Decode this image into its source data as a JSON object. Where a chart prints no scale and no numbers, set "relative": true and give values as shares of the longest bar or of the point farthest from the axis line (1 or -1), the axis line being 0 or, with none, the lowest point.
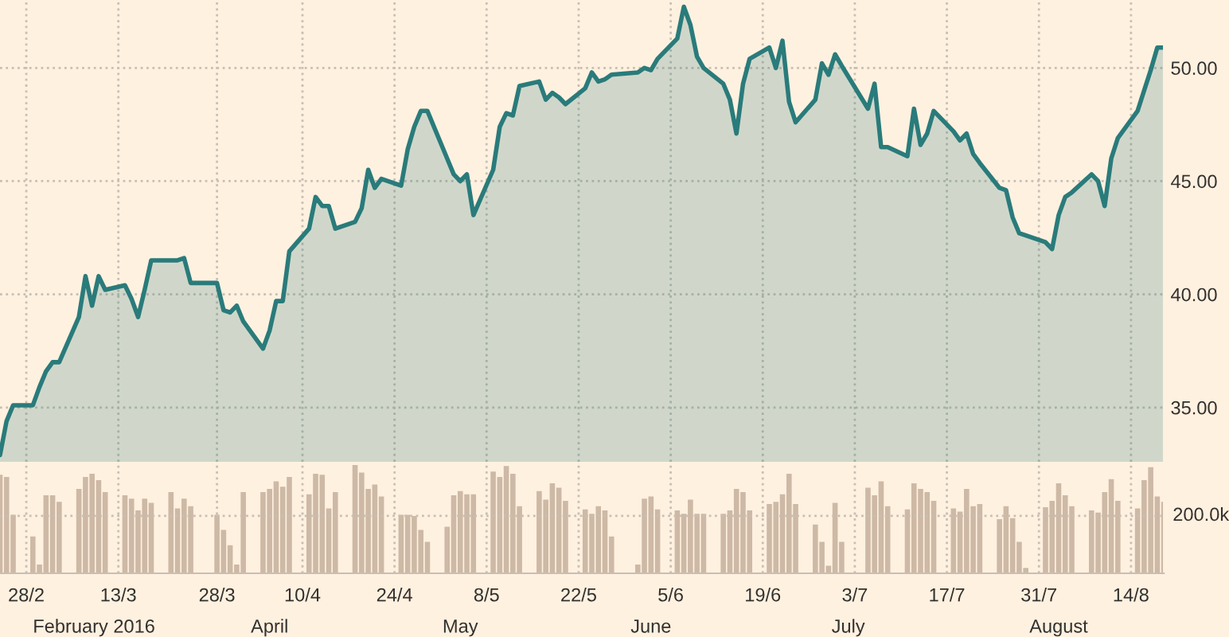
{
  "chart_data": [
    {
      "type": "area",
      "color": "#2a7b7b",
      "grid": true,
      "tick_labels": "y",
      "x": [
        "2016-02-24",
        "2016-02-25",
        "2016-02-26",
        "2016-02-29",
        "2016-03-01",
        "2016-03-02",
        "2016-03-03",
        "2016-03-04",
        "2016-03-07",
        "2016-03-08",
        "2016-03-09",
        "2016-03-10",
        "2016-03-11",
        "2016-03-14",
        "2016-03-15",
        "2016-03-16",
        "2016-03-17",
        "2016-03-18",
        "2016-03-21",
        "2016-03-22",
        "2016-03-23",
        "2016-03-24",
        "2016-03-28",
        "2016-03-29",
        "2016-03-30",
        "2016-03-31",
        "2016-04-01",
        "2016-04-04",
        "2016-04-05",
        "2016-04-06",
        "2016-04-07",
        "2016-04-08",
        "2016-04-11",
        "2016-04-12",
        "2016-04-13",
        "2016-04-14",
        "2016-04-15",
        "2016-04-18",
        "2016-04-19",
        "2016-04-20",
        "2016-04-21",
        "2016-04-22",
        "2016-04-25",
        "2016-04-26",
        "2016-04-27",
        "2016-04-28",
        "2016-04-29",
        "2016-05-02",
        "2016-05-03",
        "2016-05-04",
        "2016-05-05",
        "2016-05-06",
        "2016-05-09",
        "2016-05-10",
        "2016-05-11",
        "2016-05-12",
        "2016-05-13",
        "2016-05-16",
        "2016-05-17",
        "2016-05-18",
        "2016-05-19",
        "2016-05-20",
        "2016-05-23",
        "2016-05-24",
        "2016-05-25",
        "2016-05-26",
        "2016-05-27",
        "2016-05-31",
        "2016-06-01",
        "2016-06-02",
        "2016-06-03",
        "2016-06-06",
        "2016-06-07",
        "2016-06-08",
        "2016-06-09",
        "2016-06-10",
        "2016-06-13",
        "2016-06-14",
        "2016-06-15",
        "2016-06-16",
        "2016-06-17",
        "2016-06-20",
        "2016-06-21",
        "2016-06-22",
        "2016-06-23",
        "2016-06-24",
        "2016-06-27",
        "2016-06-28",
        "2016-06-29",
        "2016-06-30",
        "2016-07-01",
        "2016-07-05",
        "2016-07-06",
        "2016-07-07",
        "2016-07-08",
        "2016-07-11",
        "2016-07-12",
        "2016-07-13",
        "2016-07-14",
        "2016-07-15",
        "2016-07-18",
        "2016-07-19",
        "2016-07-20",
        "2016-07-21",
        "2016-07-22",
        "2016-07-25",
        "2016-07-26",
        "2016-07-27",
        "2016-07-28",
        "2016-07-29",
        "2016-08-01",
        "2016-08-02",
        "2016-08-03",
        "2016-08-04",
        "2016-08-05",
        "2016-08-08",
        "2016-08-09",
        "2016-08-10",
        "2016-08-11",
        "2016-08-12",
        "2016-08-15",
        "2016-08-16",
        "2016-08-17",
        "2016-08-18",
        "2016-08-19"
      ],
      "values": [
        32.9,
        34.4,
        35.1,
        35.1,
        35.9,
        36.6,
        37.0,
        37.0,
        39.0,
        40.8,
        39.5,
        40.8,
        40.2,
        40.4,
        39.8,
        39.0,
        40.2,
        41.5,
        41.5,
        41.5,
        41.6,
        40.5,
        40.5,
        39.3,
        39.2,
        39.5,
        38.8,
        37.6,
        38.4,
        39.7,
        39.7,
        41.9,
        42.9,
        44.3,
        43.9,
        43.9,
        42.9,
        43.2,
        43.8,
        45.5,
        44.7,
        45.1,
        44.8,
        46.4,
        47.4,
        48.1,
        48.1,
        46.0,
        45.3,
        45.0,
        45.3,
        43.5,
        45.5,
        47.4,
        48.0,
        47.9,
        49.2,
        49.4,
        48.6,
        48.9,
        48.7,
        48.4,
        49.1,
        49.8,
        49.4,
        49.5,
        49.7,
        49.8,
        50.0,
        49.9,
        50.4,
        51.3,
        52.7,
        51.9,
        50.5,
        50.0,
        49.3,
        48.6,
        47.1,
        49.3,
        50.4,
        50.9,
        50.0,
        51.2,
        48.5,
        47.6,
        48.6,
        50.2,
        49.7,
        50.6,
        50.1,
        48.2,
        49.3,
        46.5,
        46.5,
        46.1,
        48.2,
        46.6,
        47.1,
        48.1,
        47.2,
        46.8,
        47.1,
        46.2,
        45.8,
        44.7,
        44.6,
        43.4,
        42.7,
        42.6,
        42.3,
        42.0,
        43.5,
        44.3,
        44.5,
        45.3,
        45.0,
        43.9,
        46.0,
        46.9,
        48.1,
        49.0,
        49.9,
        50.9,
        50.9
      ],
      "xlim": [
        "2016-02-24",
        "2016-08-19"
      ],
      "xticks": [
        {
          "value": "2016-02-28",
          "label": null
        },
        {
          "value": "2016-03-13",
          "label": null
        },
        {
          "value": "2016-03-28",
          "label": null
        },
        {
          "value": "2016-04-10",
          "label": null
        },
        {
          "value": "2016-04-24",
          "label": null
        },
        {
          "value": "2016-05-08",
          "label": null
        },
        {
          "value": "2016-05-22",
          "label": null
        },
        {
          "value": "2016-06-05",
          "label": null
        },
        {
          "value": "2016-06-19",
          "label": null
        },
        {
          "value": "2016-07-03",
          "label": null
        },
        {
          "value": "2016-07-17",
          "label": null
        },
        {
          "value": "2016-07-31",
          "label": null
        },
        {
          "value": "2016-08-14",
          "label": null
        }
      ],
      "ylim": [
        32.6,
        53.0
      ],
      "yticks": [
        {
          "value": 35,
          "label": "35.00"
        },
        {
          "value": 40,
          "label": "40.00"
        },
        {
          "value": 45,
          "label": "45.00"
        },
        {
          "value": 50,
          "label": "50.00"
        }
      ]
    },
    {
      "type": "bar",
      "relative": true,
      "color": "#cdb9a5",
      "grid": "x",
      "x": [
        "2016-02-24",
        "2016-02-25",
        "2016-02-26",
        "2016-02-29",
        "2016-03-01",
        "2016-03-02",
        "2016-03-03",
        "2016-03-04",
        "2016-03-07",
        "2016-03-08",
        "2016-03-09",
        "2016-03-10",
        "2016-03-11",
        "2016-03-14",
        "2016-03-15",
        "2016-03-16",
        "2016-03-17",
        "2016-03-18",
        "2016-03-21",
        "2016-03-22",
        "2016-03-23",
        "2016-03-24",
        "2016-03-28",
        "2016-03-29",
        "2016-03-30",
        "2016-03-31",
        "2016-04-01",
        "2016-04-04",
        "2016-04-05",
        "2016-04-06",
        "2016-04-07",
        "2016-04-08",
        "2016-04-11",
        "2016-04-12",
        "2016-04-13",
        "2016-04-14",
        "2016-04-15",
        "2016-04-18",
        "2016-04-19",
        "2016-04-20",
        "2016-04-21",
        "2016-04-22",
        "2016-04-25",
        "2016-04-26",
        "2016-04-27",
        "2016-04-28",
        "2016-04-29",
        "2016-05-02",
        "2016-05-03",
        "2016-05-04",
        "2016-05-05",
        "2016-05-06",
        "2016-05-09",
        "2016-05-10",
        "2016-05-11",
        "2016-05-12",
        "2016-05-13",
        "2016-05-16",
        "2016-05-17",
        "2016-05-18",
        "2016-05-19",
        "2016-05-20",
        "2016-05-23",
        "2016-05-24",
        "2016-05-25",
        "2016-05-26",
        "2016-05-27",
        "2016-05-31",
        "2016-06-01",
        "2016-06-02",
        "2016-06-03",
        "2016-06-06",
        "2016-06-07",
        "2016-06-08",
        "2016-06-09",
        "2016-06-10",
        "2016-06-13",
        "2016-06-14",
        "2016-06-15",
        "2016-06-16",
        "2016-06-17",
        "2016-06-20",
        "2016-06-21",
        "2016-06-22",
        "2016-06-23",
        "2016-06-24",
        "2016-06-27",
        "2016-06-28",
        "2016-06-29",
        "2016-06-30",
        "2016-07-01",
        "2016-07-05",
        "2016-07-06",
        "2016-07-07",
        "2016-07-08",
        "2016-07-11",
        "2016-07-12",
        "2016-07-13",
        "2016-07-14",
        "2016-07-15",
        "2016-07-18",
        "2016-07-19",
        "2016-07-20",
        "2016-07-21",
        "2016-07-22",
        "2016-07-25",
        "2016-07-26",
        "2016-07-27",
        "2016-07-28",
        "2016-07-29",
        "2016-08-01",
        "2016-08-02",
        "2016-08-03",
        "2016-08-04",
        "2016-08-05",
        "2016-08-08",
        "2016-08-09",
        "2016-08-10",
        "2016-08-11",
        "2016-08-12",
        "2016-08-15",
        "2016-08-16",
        "2016-08-17",
        "2016-08-18",
        "2016-08-19"
      ],
      "values": [
        0.91,
        0.89,
        0.54,
        0.34,
        0.08,
        0.72,
        0.72,
        0.66,
        0.78,
        0.89,
        0.92,
        0.86,
        0.75,
        0.72,
        0.69,
        0.58,
        0.69,
        0.65,
        0.75,
        0.6,
        0.69,
        0.62,
        0.54,
        0.4,
        0.26,
        0.08,
        0.75,
        0.75,
        0.78,
        0.85,
        0.8,
        0.89,
        0.73,
        0.92,
        0.91,
        0.6,
        0.75,
        1,
        0.93,
        0.78,
        0.82,
        0.71,
        0.54,
        0.54,
        0.53,
        0.4,
        0.29,
        0.43,
        0.72,
        0.76,
        0.73,
        0.73,
        0.94,
        0.89,
        0.99,
        0.92,
        0.62,
        0.76,
        0.68,
        0.83,
        0.79,
        0.67,
        0.59,
        0.55,
        0.62,
        0.58,
        0.34,
        0.08,
        0.69,
        0.71,
        0.59,
        0.58,
        0.55,
        0.68,
        0.55,
        0.55,
        0.55,
        0.58,
        0.78,
        0.75,
        0.58,
        0.64,
        0.66,
        0.73,
        0.92,
        0.64,
        0.45,
        0.29,
        0.07,
        0.65,
        0.29,
        0.79,
        0.72,
        0.85,
        0.62,
        0.59,
        0.83,
        0.78,
        0.75,
        0.67,
        0.6,
        0.57,
        0.78,
        0.62,
        0.64,
        0.5,
        0.62,
        0.51,
        0.29,
        0.05,
        0.61,
        0.67,
        0.83,
        0.72,
        0.62,
        0.58,
        0.56,
        0.75,
        0.87,
        0.67,
        0.6,
        0.86,
        0.98,
        0.71,
        0.66
      ],
      "xlim": [
        "2016-02-24",
        "2016-08-19"
      ],
      "xticks": [
        {
          "value": "2016-02-28",
          "label": "28/2"
        },
        {
          "value": "2016-03-13",
          "label": "13/3"
        },
        {
          "value": "2016-03-28",
          "label": "28/3"
        },
        {
          "value": "2016-04-10",
          "label": "10/4"
        },
        {
          "value": "2016-04-24",
          "label": "24/4"
        },
        {
          "value": "2016-05-08",
          "label": "8/5"
        },
        {
          "value": "2016-05-22",
          "label": "22/5"
        },
        {
          "value": "2016-06-05",
          "label": "5/6"
        },
        {
          "value": "2016-06-19",
          "label": "19/6"
        },
        {
          "value": "2016-07-03",
          "label": "3/7"
        },
        {
          "value": "2016-07-17",
          "label": "17/7"
        },
        {
          "value": "2016-07-31",
          "label": "31/7"
        },
        {
          "value": "2016-08-14",
          "label": "14/8"
        }
      ],
      "x2lim": [
        "2016-02-24",
        "2016-08-19"
      ],
      "x2ticks": [
        {
          "value": "2016-02-29",
          "label": "February 2016"
        },
        {
          "value": "2016-04-05",
          "label": "April"
        },
        {
          "value": "2016-05-04",
          "label": "May"
        },
        {
          "value": "2016-06-02",
          "label": "June"
        },
        {
          "value": "2016-07-02",
          "label": "July"
        },
        {
          "value": "2016-08-03",
          "label": "August"
        }
      ],
      "ref_lines": [
        {
          "axis": "y",
          "value": 0.53,
          "label": "200.0k",
          "line_style": "dotted",
          "color": "#c8bfb4"
        }
      ]
    }
  ]
}
